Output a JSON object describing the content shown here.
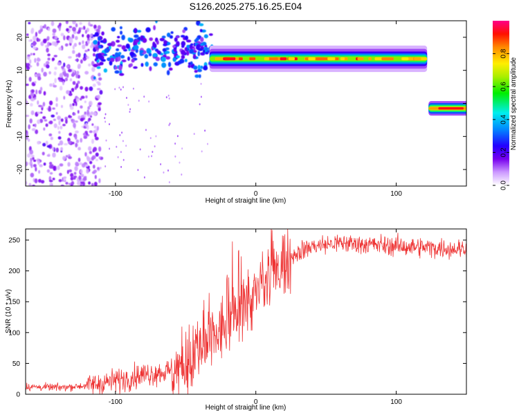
{
  "title": "S126.2025.275.16.25.E04",
  "chart_data": [
    {
      "type": "heatmap",
      "xlabel": "Height of straight line (km)",
      "ylabel": "Frequency (Hz)",
      "xlim": [
        -164,
        150
      ],
      "ylim": [
        -25,
        25
      ],
      "xticks": [
        -100,
        0,
        100
      ],
      "yticks": [
        -20,
        -10,
        0,
        10,
        20
      ],
      "colorbar": {
        "label": "Normalized spectral amplitude",
        "range": [
          0.0,
          1.0
        ],
        "ticks": [
          0.0,
          0.2,
          0.4,
          0.6,
          0.8
        ]
      },
      "features": [
        {
          "name": "noise-cloud",
          "x_range": [
            -164,
            -110
          ],
          "freq_range": [
            -25,
            25
          ],
          "amplitude": 0.1
        },
        {
          "name": "scatter-cluster",
          "x_range": [
            -115,
            -30
          ],
          "freq_range": [
            8,
            23
          ],
          "amplitude": 0.35
        },
        {
          "name": "main-tone",
          "x_range": [
            -33,
            122
          ],
          "frequency": 13.5,
          "amplitude": 0.85
        },
        {
          "name": "second-tone",
          "x_range": [
            123,
            150
          ],
          "frequency": -1.5,
          "amplitude": 0.95
        }
      ]
    },
    {
      "type": "line",
      "xlabel": "Height of straight line (km)",
      "ylabel": "SNR (10 * v/v)",
      "xlim": [
        -164,
        150
      ],
      "ylim": [
        0,
        268
      ],
      "xticks": [
        -100,
        0,
        100
      ],
      "yticks": [
        0,
        50,
        100,
        150,
        200,
        250
      ],
      "series": [
        {
          "name": "SNR",
          "color": "#ee3333",
          "x": [
            -164,
            -140,
            -120,
            -100,
            -80,
            -60,
            -50,
            -40,
            -30,
            -20,
            -10,
            0,
            10,
            20,
            30,
            40,
            60,
            80,
            100,
            120,
            140,
            150
          ],
          "y": [
            12,
            11,
            14,
            22,
            32,
            38,
            45,
            65,
            90,
            115,
            140,
            160,
            185,
            215,
            230,
            240,
            245,
            243,
            240,
            238,
            236,
            236
          ]
        }
      ]
    }
  ]
}
